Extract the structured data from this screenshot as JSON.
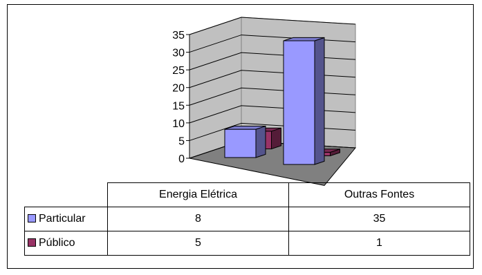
{
  "chart_data": {
    "type": "bar",
    "categories": [
      "Energia Elétrica",
      "Outras Fontes"
    ],
    "series": [
      {
        "name": "Particular",
        "values": [
          8,
          35
        ],
        "color": "#9999ff"
      },
      {
        "name": "Público",
        "values": [
          5,
          1
        ],
        "color": "#993366"
      }
    ],
    "ylim": [
      0,
      35
    ],
    "yticks": [
      0,
      5,
      10,
      15,
      20,
      25,
      30,
      35
    ],
    "grid": true,
    "legend": "data-table",
    "style": "3d-column"
  }
}
